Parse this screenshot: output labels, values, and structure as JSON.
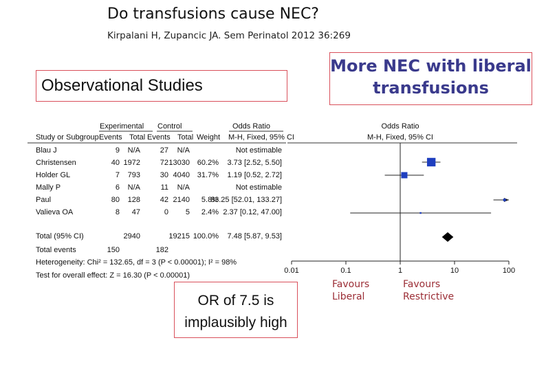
{
  "slide": {
    "title": "Do transfusions cause NEC?",
    "citation": "Kirpalani H, Zupancic JA. Sem Perinatol 2012 36:269",
    "observational_label": "Observational Studies",
    "more_nec_line1": "More NEC with  liberal",
    "more_nec_line2": "transfusions",
    "or_note_line1": "OR of 7.5 is",
    "or_note_line2": "implausibly high",
    "favours_liberal_line1": "Favours",
    "favours_liberal_line2": "Liberal",
    "favours_restrictive_line1": "Favours",
    "favours_restrictive_line2": "Restrictive"
  },
  "table": {
    "group_headers": {
      "experimental": "Experimental",
      "control": "Control",
      "odds_ratio": "Odds Ratio"
    },
    "col_headers": {
      "study": "Study or Subgroup",
      "exp_events": "Events",
      "exp_total": "Total",
      "ctrl_events": "Events",
      "ctrl_total": "Total",
      "weight": "Weight",
      "or_method": "M-H, Fixed, 95% CI"
    },
    "plot_headers": {
      "title": "Odds Ratio",
      "method": "M-H, Fixed, 95% CI"
    },
    "rows": [
      {
        "study": "Blau J",
        "exp_events": "9",
        "exp_total": "N/A",
        "ctrl_events": "27",
        "ctrl_total": "N/A",
        "weight": "",
        "or_ci": "Not estimable"
      },
      {
        "study": "Christensen",
        "exp_events": "40",
        "exp_total": "1972",
        "ctrl_events": "72",
        "ctrl_total": "13030",
        "weight": "60.2%",
        "or_ci": "3.73 [2.52, 5.50]"
      },
      {
        "study": "Holder GL",
        "exp_events": "7",
        "exp_total": "793",
        "ctrl_events": "30",
        "ctrl_total": "4040",
        "weight": "31.7%",
        "or_ci": "1.19 [0.52, 2.72]"
      },
      {
        "study": "Mally P",
        "exp_events": "6",
        "exp_total": "N/A",
        "ctrl_events": "11",
        "ctrl_total": "N/A",
        "weight": "",
        "or_ci": "Not estimable"
      },
      {
        "study": "Paul",
        "exp_events": "80",
        "exp_total": "128",
        "ctrl_events": "42",
        "ctrl_total": "2140",
        "weight": "5.8%",
        "or_ci": "83.25 [52.01, 133.27]"
      },
      {
        "study": "Valieva OA",
        "exp_events": "8",
        "exp_total": "47",
        "ctrl_events": "0",
        "ctrl_total": "5",
        "weight": "2.4%",
        "or_ci": "2.37 [0.12, 47.00]"
      }
    ],
    "total": {
      "study": "Total (95% CI)",
      "exp_total": "2940",
      "ctrl_total": "19215",
      "weight": "100.0%",
      "or_ci": "7.48 [5.87, 9.53]"
    },
    "total_events": {
      "label": "Total events",
      "exp": "150",
      "ctrl": "182"
    },
    "heterogeneity": "Heterogeneity: Chi² = 132.65, df = 3 (P < 0.00001); I² = 98%",
    "overall_effect": "Test for overall effect: Z = 16.30 (P < 0.00001)"
  },
  "chart_data": {
    "type": "forest",
    "scale": "log",
    "x_range": [
      0.01,
      100
    ],
    "x_ticks": [
      0.01,
      0.1,
      1,
      10,
      100
    ],
    "x_tick_labels": [
      "0.01",
      "0.1",
      "1",
      "10",
      "100"
    ],
    "studies": [
      {
        "name": "Christensen",
        "or": 3.73,
        "lo": 2.52,
        "hi": 5.5,
        "weight": 60.2,
        "arrow": false
      },
      {
        "name": "Holder GL",
        "or": 1.19,
        "lo": 0.52,
        "hi": 2.72,
        "weight": 31.7,
        "arrow": false
      },
      {
        "name": "Paul",
        "or": 83.25,
        "lo": 52.01,
        "hi": 133.27,
        "weight": 5.8,
        "arrow": true
      },
      {
        "name": "Valieva OA",
        "or": 2.37,
        "lo": 0.12,
        "hi": 47.0,
        "weight": 2.4,
        "arrow": false
      }
    ],
    "pooled": {
      "or": 7.48,
      "lo": 5.87,
      "hi": 9.53
    },
    "colors": {
      "square": "#1f3fbf",
      "line": "#222222",
      "diamond": "#000000"
    }
  }
}
